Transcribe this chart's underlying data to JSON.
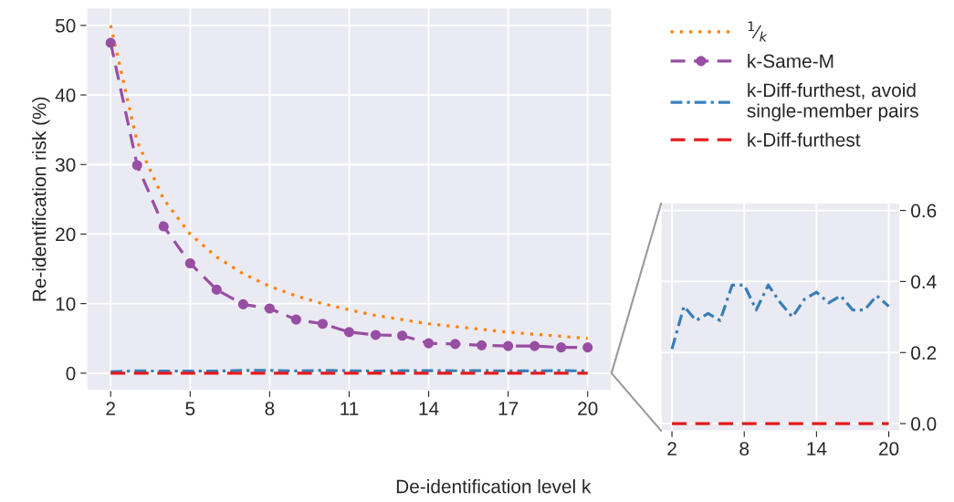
{
  "chart_data": [
    {
      "type": "line",
      "xlabel": "De-identification level k",
      "ylabel": "Re-identification risk (%)",
      "x": [
        2,
        3,
        4,
        5,
        6,
        7,
        8,
        9,
        10,
        11,
        12,
        13,
        14,
        15,
        16,
        17,
        18,
        19,
        20
      ],
      "series": [
        {
          "name": "$^{1}$⁄$_{k}$",
          "color": "#ff7f00",
          "line_style": "dotted",
          "marker": "none",
          "values": [
            50,
            33.3,
            25,
            20,
            16.7,
            14.3,
            12.5,
            11.1,
            10,
            9.1,
            8.3,
            7.7,
            7.1,
            6.7,
            6.3,
            5.9,
            5.6,
            5.3,
            5
          ]
        },
        {
          "name": "k-Same-M",
          "color": "#984ea3",
          "line_style": "dashed",
          "marker": "circle",
          "values": [
            47.5,
            29.9,
            21.1,
            15.8,
            12.0,
            9.9,
            9.3,
            7.7,
            7.1,
            5.9,
            5.5,
            5.4,
            4.3,
            4.2,
            4.0,
            3.9,
            3.9,
            3.7,
            3.7
          ]
        },
        {
          "name": "k-Diff-furthest, avoid\nsingle-member pairs",
          "color": "#377eb8",
          "line_style": "dashdot",
          "marker": "none",
          "values": [
            0.21,
            0.33,
            0.29,
            0.31,
            0.29,
            0.39,
            0.39,
            0.32,
            0.39,
            0.34,
            0.3,
            0.35,
            0.37,
            0.34,
            0.36,
            0.32,
            0.32,
            0.36,
            0.33
          ]
        },
        {
          "name": "k-Diff-furthest",
          "color": "#e41a1c",
          "line_style": "dashed",
          "marker": "none",
          "values": [
            0,
            0,
            0,
            0,
            0,
            0,
            0,
            0,
            0,
            0,
            0,
            0,
            0,
            0,
            0,
            0,
            0,
            0,
            0
          ]
        }
      ],
      "xlim": [
        1.1,
        20.9
      ],
      "xticks": [
        2,
        5,
        8,
        11,
        14,
        17,
        20
      ],
      "ylim": [
        -2.5,
        52.5
      ],
      "yticks": [
        0,
        10,
        20,
        30,
        40,
        50
      ],
      "grid": true,
      "legend": "top right"
    },
    {
      "type": "line",
      "x": [
        2,
        3,
        4,
        5,
        6,
        7,
        8,
        9,
        10,
        11,
        12,
        13,
        14,
        15,
        16,
        17,
        18,
        19,
        20
      ],
      "series": [
        {
          "color": "#377eb8",
          "line_style": "dashdot",
          "marker": "none",
          "values": [
            0.21,
            0.33,
            0.29,
            0.31,
            0.29,
            0.39,
            0.39,
            0.32,
            0.39,
            0.34,
            0.3,
            0.35,
            0.37,
            0.34,
            0.36,
            0.32,
            0.32,
            0.36,
            0.33
          ]
        },
        {
          "color": "#e41a1c",
          "line_style": "dashed",
          "marker": "none",
          "values": [
            0,
            0,
            0,
            0,
            0,
            0,
            0,
            0,
            0,
            0,
            0,
            0,
            0,
            0,
            0,
            0,
            0,
            0,
            0
          ]
        }
      ],
      "xlim": [
        1.1,
        20.9
      ],
      "xticks": [
        2,
        8,
        14,
        20
      ],
      "ylim": [
        -0.02,
        0.62
      ],
      "yticks": [
        {
          "value": 0,
          "label": "0.0"
        },
        0.2,
        0.4,
        0.6
      ],
      "grid": true,
      "legend": false
    }
  ]
}
